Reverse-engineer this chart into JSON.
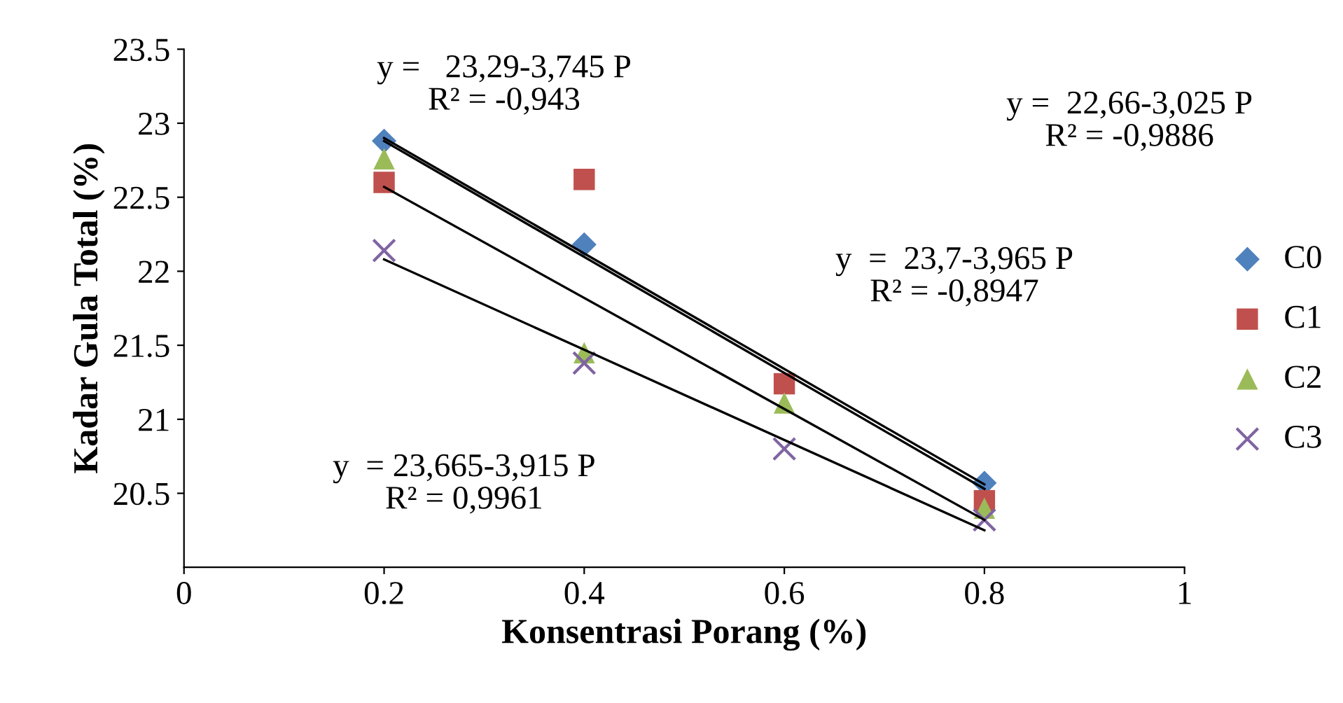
{
  "chart_data": {
    "type": "scatter",
    "xlabel": "Konsentrasi Porang (%)",
    "ylabel": "Kadar Gula Total (%)",
    "xlim": [
      0,
      1
    ],
    "ylim": [
      20,
      23.5
    ],
    "xticks": [
      0,
      0.2,
      0.4,
      0.6,
      0.8,
      1
    ],
    "yticks": [
      20.5,
      21,
      21.5,
      22,
      22.5,
      23,
      23.5
    ],
    "grid": false,
    "legend": "right",
    "series": [
      {
        "name": "C0",
        "color": "#4f81bd",
        "marker": "diamond",
        "x": [
          0.2,
          0.4,
          0.6,
          0.8
        ],
        "values": [
          22.88,
          22.18,
          null,
          20.57
        ]
      },
      {
        "name": "C1",
        "color": "#c0504d",
        "marker": "square",
        "x": [
          0.2,
          0.4,
          0.6,
          0.8
        ],
        "values": [
          22.6,
          22.62,
          21.24,
          20.45
        ]
      },
      {
        "name": "C2",
        "color": "#9bbb59",
        "marker": "triangle",
        "x": [
          0.2,
          0.4,
          0.6,
          0.8
        ],
        "values": [
          22.76,
          21.45,
          21.11,
          20.4
        ]
      },
      {
        "name": "C3",
        "color": "#8064a2",
        "marker": "cross",
        "x": [
          0.2,
          0.4,
          0.6,
          0.8
        ],
        "values": [
          22.14,
          21.38,
          20.8,
          20.32
        ]
      },
      {
        "type": "line",
        "color": "#000000",
        "marker": "none",
        "x": [
          0.2,
          0.8
        ],
        "values": [
          22.9,
          20.56
        ]
      },
      {
        "type": "line",
        "color": "#000000",
        "marker": "none",
        "x": [
          0.2,
          0.8
        ],
        "values": [
          22.88,
          20.53
        ]
      },
      {
        "type": "line",
        "color": "#000000",
        "marker": "none",
        "x": [
          0.2,
          0.8
        ],
        "values": [
          22.57,
          20.32
        ]
      },
      {
        "type": "line",
        "color": "#000000",
        "marker": "none",
        "x": [
          0.2,
          0.8
        ],
        "values": [
          22.08,
          20.25
        ]
      }
    ],
    "annotations": [
      "y =   23,29-3,745 P\nR² = -0,943",
      "y =  22,66-3,025 P\nR² = -0,9886",
      "y  =  23,7-3,965 P\nR² = -0,8947",
      "y  = 23,665-3,915 P\nR² = 0,9961"
    ]
  }
}
